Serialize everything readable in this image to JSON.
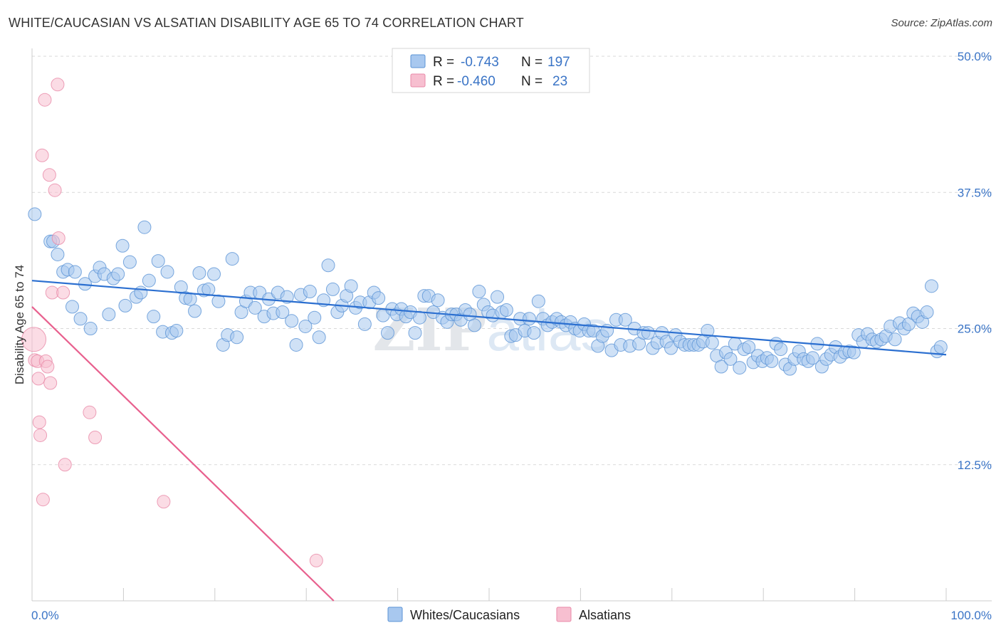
{
  "title": "WHITE/CAUCASIAN VS ALSATIAN DISABILITY AGE 65 TO 74 CORRELATION CHART",
  "source": "Source: ZipAtlas.com",
  "watermark": "ZIPatlas",
  "colors": {
    "blue_fill": "#a8c8ef",
    "blue_stroke": "#5b93d6",
    "blue_line": "#2b6fd0",
    "pink_fill": "#f7bfd0",
    "pink_stroke": "#e88aa8",
    "pink_line": "#e8608e",
    "grid": "#d9d9d9",
    "tick_text": "#3a74c6"
  },
  "legend": {
    "rows": [
      {
        "r_label": "R =",
        "r_value": "-0.743",
        "n_label": "N =",
        "n_value": "197"
      },
      {
        "r_label": "R =",
        "r_value": "-0.460",
        "n_label": "N =",
        "n_value": "23"
      }
    ]
  },
  "chart_data": {
    "type": "scatter",
    "title": "WHITE/CAUCASIAN VS ALSATIAN DISABILITY AGE 65 TO 74 CORRELATION CHART",
    "xlabel": "",
    "ylabel": "Disability Age 65 to 74",
    "xlim": [
      0,
      100
    ],
    "ylim": [
      0,
      50
    ],
    "x_tick_labels": [
      "0.0%",
      "100.0%"
    ],
    "y_ticks": [
      12.5,
      25.0,
      37.5,
      50.0
    ],
    "y_tick_labels": [
      "12.5%",
      "25.0%",
      "37.5%",
      "50.0%"
    ],
    "grid": true,
    "legend_position": "top-center",
    "series": [
      {
        "name": "Whites/Caucasians",
        "color": "#a8c8ef",
        "trend": {
          "x": [
            0,
            100
          ],
          "y": [
            29.4,
            22.6
          ]
        },
        "points": [
          [
            0.3,
            35.5
          ],
          [
            2.0,
            33.0
          ],
          [
            2.3,
            33.0
          ],
          [
            2.8,
            31.8
          ],
          [
            3.4,
            30.2
          ],
          [
            3.9,
            30.4
          ],
          [
            4.4,
            27.0
          ],
          [
            4.7,
            30.2
          ],
          [
            5.3,
            25.9
          ],
          [
            5.8,
            29.1
          ],
          [
            6.4,
            25.0
          ],
          [
            6.9,
            29.8
          ],
          [
            7.4,
            30.6
          ],
          [
            7.9,
            30.0
          ],
          [
            8.4,
            26.3
          ],
          [
            8.9,
            29.6
          ],
          [
            9.4,
            30.0
          ],
          [
            9.9,
            32.6
          ],
          [
            10.2,
            27.1
          ],
          [
            10.7,
            31.1
          ],
          [
            11.4,
            27.9
          ],
          [
            11.9,
            28.3
          ],
          [
            12.3,
            34.3
          ],
          [
            12.8,
            29.4
          ],
          [
            13.3,
            26.1
          ],
          [
            13.8,
            31.2
          ],
          [
            14.3,
            24.7
          ],
          [
            14.8,
            30.2
          ],
          [
            15.3,
            24.6
          ],
          [
            15.8,
            24.8
          ],
          [
            16.3,
            28.8
          ],
          [
            16.8,
            27.8
          ],
          [
            17.3,
            27.7
          ],
          [
            17.8,
            26.6
          ],
          [
            18.3,
            30.1
          ],
          [
            18.8,
            28.5
          ],
          [
            19.3,
            28.6
          ],
          [
            19.9,
            30.0
          ],
          [
            20.4,
            27.5
          ],
          [
            20.9,
            23.5
          ],
          [
            21.4,
            24.4
          ],
          [
            21.9,
            31.4
          ],
          [
            22.4,
            24.2
          ],
          [
            22.9,
            26.5
          ],
          [
            23.4,
            27.5
          ],
          [
            23.9,
            28.3
          ],
          [
            24.4,
            26.9
          ],
          [
            24.9,
            28.3
          ],
          [
            25.4,
            26.1
          ],
          [
            25.9,
            27.7
          ],
          [
            26.4,
            26.4
          ],
          [
            26.9,
            28.3
          ],
          [
            27.4,
            26.5
          ],
          [
            27.9,
            27.9
          ],
          [
            28.4,
            25.7
          ],
          [
            28.9,
            23.5
          ],
          [
            29.4,
            28.1
          ],
          [
            29.9,
            25.2
          ],
          [
            30.4,
            28.4
          ],
          [
            30.9,
            26.0
          ],
          [
            31.4,
            24.2
          ],
          [
            31.9,
            27.6
          ],
          [
            32.4,
            30.8
          ],
          [
            32.9,
            28.6
          ],
          [
            33.4,
            26.5
          ],
          [
            33.9,
            27.1
          ],
          [
            34.4,
            28.0
          ],
          [
            34.9,
            28.9
          ],
          [
            35.4,
            26.9
          ],
          [
            35.9,
            27.4
          ],
          [
            36.4,
            25.4
          ],
          [
            36.9,
            27.4
          ],
          [
            37.4,
            28.3
          ],
          [
            37.9,
            27.8
          ],
          [
            38.4,
            26.2
          ],
          [
            38.9,
            24.6
          ],
          [
            39.4,
            26.8
          ],
          [
            39.9,
            26.3
          ],
          [
            40.4,
            26.8
          ],
          [
            40.9,
            26.1
          ],
          [
            41.4,
            26.5
          ],
          [
            41.9,
            24.6
          ],
          [
            42.4,
            26.0
          ],
          [
            42.9,
            28.0
          ],
          [
            43.4,
            28.0
          ],
          [
            43.9,
            26.5
          ],
          [
            44.4,
            27.6
          ],
          [
            44.9,
            26.0
          ],
          [
            45.4,
            25.6
          ],
          [
            45.9,
            26.3
          ],
          [
            46.4,
            26.3
          ],
          [
            46.9,
            25.8
          ],
          [
            47.4,
            26.7
          ],
          [
            47.9,
            26.3
          ],
          [
            48.4,
            25.3
          ],
          [
            48.9,
            28.4
          ],
          [
            49.4,
            27.2
          ],
          [
            49.9,
            26.5
          ],
          [
            50.4,
            26.2
          ],
          [
            50.9,
            27.9
          ],
          [
            51.4,
            26.5
          ],
          [
            51.9,
            26.7
          ],
          [
            52.4,
            24.3
          ],
          [
            52.9,
            24.4
          ],
          [
            53.4,
            25.9
          ],
          [
            53.9,
            24.8
          ],
          [
            54.4,
            25.9
          ],
          [
            54.9,
            24.6
          ],
          [
            55.4,
            27.5
          ],
          [
            55.9,
            25.9
          ],
          [
            56.4,
            25.3
          ],
          [
            56.9,
            25.6
          ],
          [
            57.4,
            25.9
          ],
          [
            57.9,
            25.6
          ],
          [
            58.4,
            25.3
          ],
          [
            58.9,
            25.6
          ],
          [
            59.4,
            25.0
          ],
          [
            59.9,
            24.8
          ],
          [
            60.4,
            25.4
          ],
          [
            60.9,
            24.8
          ],
          [
            61.4,
            24.8
          ],
          [
            61.9,
            23.4
          ],
          [
            62.4,
            24.3
          ],
          [
            62.9,
            24.8
          ],
          [
            63.4,
            23.0
          ],
          [
            63.9,
            25.8
          ],
          [
            64.4,
            23.5
          ],
          [
            64.9,
            25.8
          ],
          [
            65.4,
            23.4
          ],
          [
            65.9,
            25.0
          ],
          [
            66.4,
            23.6
          ],
          [
            66.9,
            24.6
          ],
          [
            67.4,
            24.6
          ],
          [
            67.9,
            23.2
          ],
          [
            68.4,
            23.7
          ],
          [
            68.9,
            24.6
          ],
          [
            69.4,
            23.8
          ],
          [
            69.9,
            23.2
          ],
          [
            70.4,
            24.4
          ],
          [
            70.9,
            23.8
          ],
          [
            71.4,
            23.5
          ],
          [
            71.9,
            23.5
          ],
          [
            72.4,
            23.5
          ],
          [
            72.9,
            23.5
          ],
          [
            73.4,
            23.8
          ],
          [
            73.9,
            24.8
          ],
          [
            74.4,
            23.7
          ],
          [
            74.9,
            22.5
          ],
          [
            75.4,
            21.5
          ],
          [
            75.9,
            22.8
          ],
          [
            76.4,
            22.2
          ],
          [
            76.9,
            23.6
          ],
          [
            77.4,
            21.4
          ],
          [
            77.9,
            23.1
          ],
          [
            78.4,
            23.3
          ],
          [
            78.9,
            21.9
          ],
          [
            79.4,
            22.5
          ],
          [
            79.9,
            22.0
          ],
          [
            80.4,
            22.3
          ],
          [
            80.9,
            22.0
          ],
          [
            81.4,
            23.6
          ],
          [
            81.9,
            23.1
          ],
          [
            82.4,
            21.7
          ],
          [
            82.9,
            21.3
          ],
          [
            83.4,
            22.2
          ],
          [
            83.9,
            22.9
          ],
          [
            84.4,
            22.2
          ],
          [
            84.9,
            22.0
          ],
          [
            85.4,
            22.3
          ],
          [
            85.9,
            23.6
          ],
          [
            86.4,
            21.5
          ],
          [
            86.9,
            22.2
          ],
          [
            87.4,
            22.6
          ],
          [
            87.9,
            23.3
          ],
          [
            88.4,
            22.4
          ],
          [
            88.9,
            22.8
          ],
          [
            89.4,
            22.9
          ],
          [
            89.9,
            22.8
          ],
          [
            90.4,
            24.4
          ],
          [
            90.9,
            23.8
          ],
          [
            91.4,
            24.5
          ],
          [
            91.9,
            24.0
          ],
          [
            92.4,
            23.8
          ],
          [
            92.9,
            24.0
          ],
          [
            93.4,
            24.3
          ],
          [
            93.9,
            25.2
          ],
          [
            94.4,
            24.0
          ],
          [
            94.9,
            25.5
          ],
          [
            95.4,
            25.0
          ],
          [
            95.9,
            25.4
          ],
          [
            96.4,
            26.4
          ],
          [
            96.9,
            26.1
          ],
          [
            97.4,
            25.6
          ],
          [
            97.9,
            26.5
          ],
          [
            98.4,
            28.9
          ],
          [
            99.0,
            22.9
          ],
          [
            99.4,
            23.3
          ]
        ]
      },
      {
        "name": "Alsatians",
        "color": "#f7bfd0",
        "trend": {
          "x": [
            0,
            33.0
          ],
          "y": [
            27.0,
            0
          ]
        },
        "points": [
          [
            0.2,
            24.0
          ],
          [
            0.3,
            22.1
          ],
          [
            0.6,
            22.0
          ],
          [
            0.7,
            20.4
          ],
          [
            0.8,
            16.4
          ],
          [
            0.9,
            15.2
          ],
          [
            1.1,
            40.9
          ],
          [
            1.2,
            9.3
          ],
          [
            1.4,
            46.0
          ],
          [
            1.5,
            22.0
          ],
          [
            1.7,
            21.5
          ],
          [
            1.9,
            39.1
          ],
          [
            2.0,
            20.0
          ],
          [
            2.2,
            28.3
          ],
          [
            2.5,
            37.7
          ],
          [
            2.8,
            47.4
          ],
          [
            2.9,
            33.3
          ],
          [
            3.4,
            28.3
          ],
          [
            3.6,
            12.5
          ],
          [
            6.3,
            17.3
          ],
          [
            6.9,
            15.0
          ],
          [
            14.4,
            9.1
          ],
          [
            31.1,
            3.7
          ]
        ]
      }
    ]
  }
}
